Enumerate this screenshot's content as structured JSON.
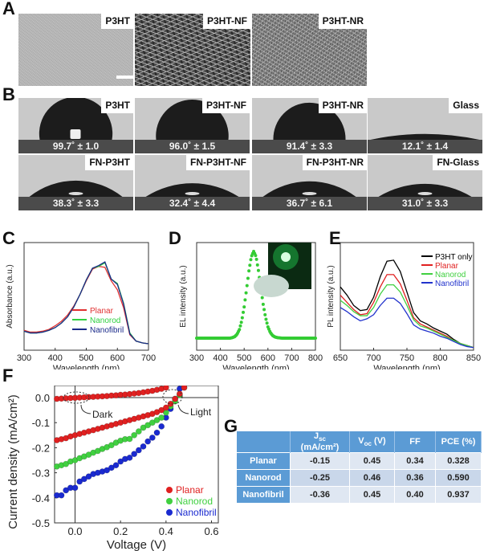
{
  "panel_letters": {
    "a": "A",
    "b": "B",
    "c": "C",
    "d": "D",
    "e": "E",
    "f": "F",
    "g": "G"
  },
  "sem_images": [
    {
      "label": "P3HT",
      "texture": "flat",
      "scale_bar": true
    },
    {
      "label": "P3HT-NF",
      "texture": "nanofibril"
    },
    {
      "label": "P3HT-NR",
      "texture": "nanorod"
    }
  ],
  "contact_angles": [
    {
      "label": "P3HT",
      "angle": "99.7˚ ± 1.0",
      "deg": 99.7
    },
    {
      "label": "P3HT-NF",
      "angle": "96.0˚ ± 1.5",
      "deg": 96.0
    },
    {
      "label": "P3HT-NR",
      "angle": "91.4˚ ± 3.3",
      "deg": 91.4
    },
    {
      "label": "Glass",
      "angle": "12.1˚ ± 1.4",
      "deg": 12.1
    },
    {
      "label": "FN-P3HT",
      "angle": "38.3˚ ± 3.3",
      "deg": 38.3
    },
    {
      "label": "FN-P3HT-NF",
      "angle": "32.4˚ ± 4.4",
      "deg": 32.4
    },
    {
      "label": "FN-P3HT-NR",
      "angle": "36.7˚ ± 6.1",
      "deg": 36.7
    },
    {
      "label": "FN-Glass",
      "angle": "31.0˚ ± 3.3",
      "deg": 31.0
    }
  ],
  "chart_data": [
    {
      "id": "C",
      "type": "line",
      "xlabel": "Wavelength (nm)",
      "ylabel": "Absorbance (a.u.)",
      "xlim": [
        300,
        700
      ],
      "xticks": [
        300,
        400,
        500,
        600,
        700
      ],
      "ylim": [
        0,
        1
      ],
      "legend": "bottom-center",
      "x": [
        300,
        320,
        340,
        360,
        380,
        400,
        420,
        440,
        460,
        480,
        500,
        520,
        540,
        560,
        580,
        600,
        620,
        640,
        660,
        680,
        700
      ],
      "series": [
        {
          "name": "Planar",
          "color": "#e03030",
          "values": [
            0.15,
            0.13,
            0.13,
            0.14,
            0.16,
            0.2,
            0.25,
            0.32,
            0.42,
            0.55,
            0.7,
            0.83,
            0.86,
            0.85,
            0.7,
            0.6,
            0.4,
            0.1,
            0.03,
            0.01,
            0.0
          ]
        },
        {
          "name": "Nanorod",
          "color": "#30d040",
          "values": [
            0.14,
            0.12,
            0.12,
            0.13,
            0.15,
            0.18,
            0.23,
            0.3,
            0.41,
            0.55,
            0.71,
            0.84,
            0.86,
            0.9,
            0.72,
            0.67,
            0.45,
            0.12,
            0.03,
            0.01,
            0.0
          ]
        },
        {
          "name": "Nanofibril",
          "color": "#1a2a8a",
          "values": [
            0.14,
            0.12,
            0.12,
            0.13,
            0.15,
            0.18,
            0.23,
            0.3,
            0.41,
            0.55,
            0.71,
            0.84,
            0.87,
            0.91,
            0.72,
            0.66,
            0.44,
            0.11,
            0.03,
            0.01,
            0.0
          ]
        }
      ]
    },
    {
      "id": "D",
      "type": "scatter",
      "xlabel": "Wavelength (nm)",
      "ylabel": "EL intensity (a.u.)",
      "xlim": [
        300,
        800
      ],
      "xticks": [
        300,
        400,
        500,
        600,
        700,
        800
      ],
      "ylim": [
        0,
        1
      ],
      "inset": "green-electroluminescence-photo",
      "x": [
        300,
        310,
        320,
        330,
        340,
        350,
        360,
        370,
        380,
        390,
        400,
        410,
        420,
        430,
        440,
        450,
        460,
        470,
        480,
        490,
        500,
        510,
        520,
        530,
        540,
        550,
        560,
        570,
        580,
        590,
        600,
        610,
        620,
        630,
        640,
        650,
        660,
        670,
        680,
        690,
        700,
        710,
        720,
        730,
        740,
        750,
        760,
        770,
        780,
        790,
        800
      ],
      "series": [
        {
          "color": "#33cc33",
          "values": [
            0,
            0,
            0,
            0,
            0,
            0,
            0,
            0,
            0,
            0,
            0,
            0,
            0,
            0,
            0,
            0.006,
            0.017,
            0.044,
            0.1,
            0.203,
            0.36,
            0.563,
            0.775,
            0.938,
            1,
            0.94,
            0.78,
            0.58,
            0.39,
            0.24,
            0.13,
            0.065,
            0.03,
            0.013,
            0.006,
            0.003,
            0,
            0,
            0,
            0,
            0,
            0,
            0,
            0,
            0,
            0,
            0,
            0,
            0,
            0,
            0
          ]
        }
      ]
    },
    {
      "id": "E",
      "type": "line",
      "xlabel": "Wavelength (nm)",
      "ylabel": "PL intensity (a.u.)",
      "xlim": [
        650,
        850
      ],
      "xticks": [
        650,
        700,
        750,
        800,
        850
      ],
      "ylim": [
        0,
        1
      ],
      "legend": "top-right",
      "x": [
        650,
        660,
        670,
        680,
        690,
        700,
        710,
        720,
        730,
        740,
        750,
        760,
        770,
        780,
        790,
        800,
        810,
        820,
        830,
        840,
        850
      ],
      "series": [
        {
          "name": "P3HT only",
          "color": "#000000",
          "values": [
            0.6,
            0.52,
            0.42,
            0.37,
            0.38,
            0.5,
            0.7,
            0.85,
            0.86,
            0.75,
            0.55,
            0.35,
            0.27,
            0.24,
            0.2,
            0.17,
            0.14,
            0.09,
            0.05,
            0.03,
            0.01
          ]
        },
        {
          "name": "Planar",
          "color": "#e02020",
          "values": [
            0.52,
            0.45,
            0.38,
            0.33,
            0.34,
            0.45,
            0.6,
            0.72,
            0.72,
            0.63,
            0.47,
            0.3,
            0.24,
            0.21,
            0.18,
            0.15,
            0.12,
            0.08,
            0.05,
            0.03,
            0.01
          ]
        },
        {
          "name": "Nanorod",
          "color": "#40d040",
          "values": [
            0.47,
            0.42,
            0.36,
            0.32,
            0.32,
            0.4,
            0.53,
            0.62,
            0.62,
            0.55,
            0.42,
            0.28,
            0.22,
            0.2,
            0.17,
            0.14,
            0.11,
            0.08,
            0.05,
            0.03,
            0.01
          ]
        },
        {
          "name": "Nanofibril",
          "color": "#2233cc",
          "values": [
            0.4,
            0.36,
            0.31,
            0.27,
            0.29,
            0.33,
            0.42,
            0.49,
            0.49,
            0.44,
            0.34,
            0.23,
            0.19,
            0.17,
            0.15,
            0.12,
            0.1,
            0.07,
            0.04,
            0.02,
            0.01
          ]
        }
      ]
    },
    {
      "id": "F",
      "type": "scatter",
      "xlabel": "Voltage (V)",
      "ylabel": "Current density (mA/cm²)",
      "xlim": [
        -0.09,
        0.63
      ],
      "ylim": [
        -0.5,
        0.05
      ],
      "xticks": [
        "0.0",
        "0.2",
        "0.4",
        "0.6"
      ],
      "yticks": [
        "0.0",
        "-0.1",
        "-0.2",
        "-0.3",
        "-0.4",
        "-0.5"
      ],
      "legend": "bottom-right",
      "annotations": [
        "Dark",
        "Light"
      ],
      "x": [
        -0.08,
        -0.06,
        -0.04,
        -0.02,
        0,
        0.02,
        0.04,
        0.06,
        0.08,
        0.1,
        0.12,
        0.14,
        0.16,
        0.18,
        0.2,
        0.22,
        0.24,
        0.26,
        0.28,
        0.3,
        0.32,
        0.34,
        0.36,
        0.38,
        0.4,
        0.42,
        0.44,
        0.46,
        0.48
      ],
      "series": [
        {
          "name": "Planar",
          "color": "#e02020",
          "values": [
            -0.17,
            -0.166,
            -0.162,
            -0.155,
            -0.15,
            -0.145,
            -0.14,
            -0.135,
            -0.13,
            -0.125,
            -0.12,
            -0.115,
            -0.11,
            -0.105,
            -0.1,
            -0.095,
            -0.09,
            -0.085,
            -0.08,
            -0.075,
            -0.07,
            -0.065,
            -0.058,
            -0.05,
            -0.04,
            -0.025,
            -0.005,
            0.015,
            0.04
          ]
        },
        {
          "name": "Nanorod",
          "color": "#40d040",
          "values": [
            -0.275,
            -0.27,
            -0.265,
            -0.255,
            -0.25,
            -0.242,
            -0.235,
            -0.228,
            -0.22,
            -0.213,
            -0.205,
            -0.198,
            -0.19,
            -0.18,
            -0.172,
            -0.166,
            -0.165,
            -0.15,
            -0.135,
            -0.12,
            -0.11,
            -0.1,
            -0.09,
            -0.08,
            -0.06,
            -0.035,
            -0.015,
            0.01,
            0.04
          ]
        },
        {
          "name": "Nanofibril",
          "color": "#1a2ad0",
          "values": [
            -0.39,
            -0.39,
            -0.37,
            -0.36,
            -0.36,
            -0.335,
            -0.325,
            -0.315,
            -0.305,
            -0.3,
            -0.295,
            -0.29,
            -0.28,
            -0.27,
            -0.255,
            -0.245,
            -0.24,
            -0.225,
            -0.21,
            -0.195,
            -0.175,
            -0.16,
            -0.14,
            -0.115,
            -0.08,
            -0.045,
            -0.005,
            0.035,
            0.07
          ]
        },
        {
          "color": "#e02020",
          "values": [
            -0.005,
            -0.004,
            -0.003,
            -0.002,
            -0.001,
            0,
            0.001,
            0.002,
            0.003,
            0.004,
            0.005,
            0.006,
            0.008,
            0.009,
            0.011,
            0.012,
            0.014,
            0.016,
            0.018,
            0.021,
            0.024,
            0.027,
            0.031,
            0.035,
            0.04,
            0.045,
            0.05,
            0.06,
            0.07
          ]
        }
      ]
    },
    {
      "id": "G",
      "type": "table",
      "columns": [
        {
          "main": "",
          "sub": "",
          "rest": ""
        },
        {
          "main": "J",
          "sub": "sc",
          "rest": " (mA/cm²)"
        },
        {
          "main": "V",
          "sub": "oc",
          "rest": " (V)"
        },
        {
          "main": "FF",
          "sub": "",
          "rest": ""
        },
        {
          "main": "PCE (%)",
          "sub": "",
          "rest": ""
        }
      ],
      "rows": [
        [
          "Planar",
          "-0.15",
          "0.45",
          "0.34",
          "0.328"
        ],
        [
          "Nanorod",
          "-0.25",
          "0.46",
          "0.36",
          "0.590"
        ],
        [
          "Nanofibril",
          "-0.36",
          "0.45",
          "0.40",
          "0.937"
        ]
      ]
    }
  ]
}
